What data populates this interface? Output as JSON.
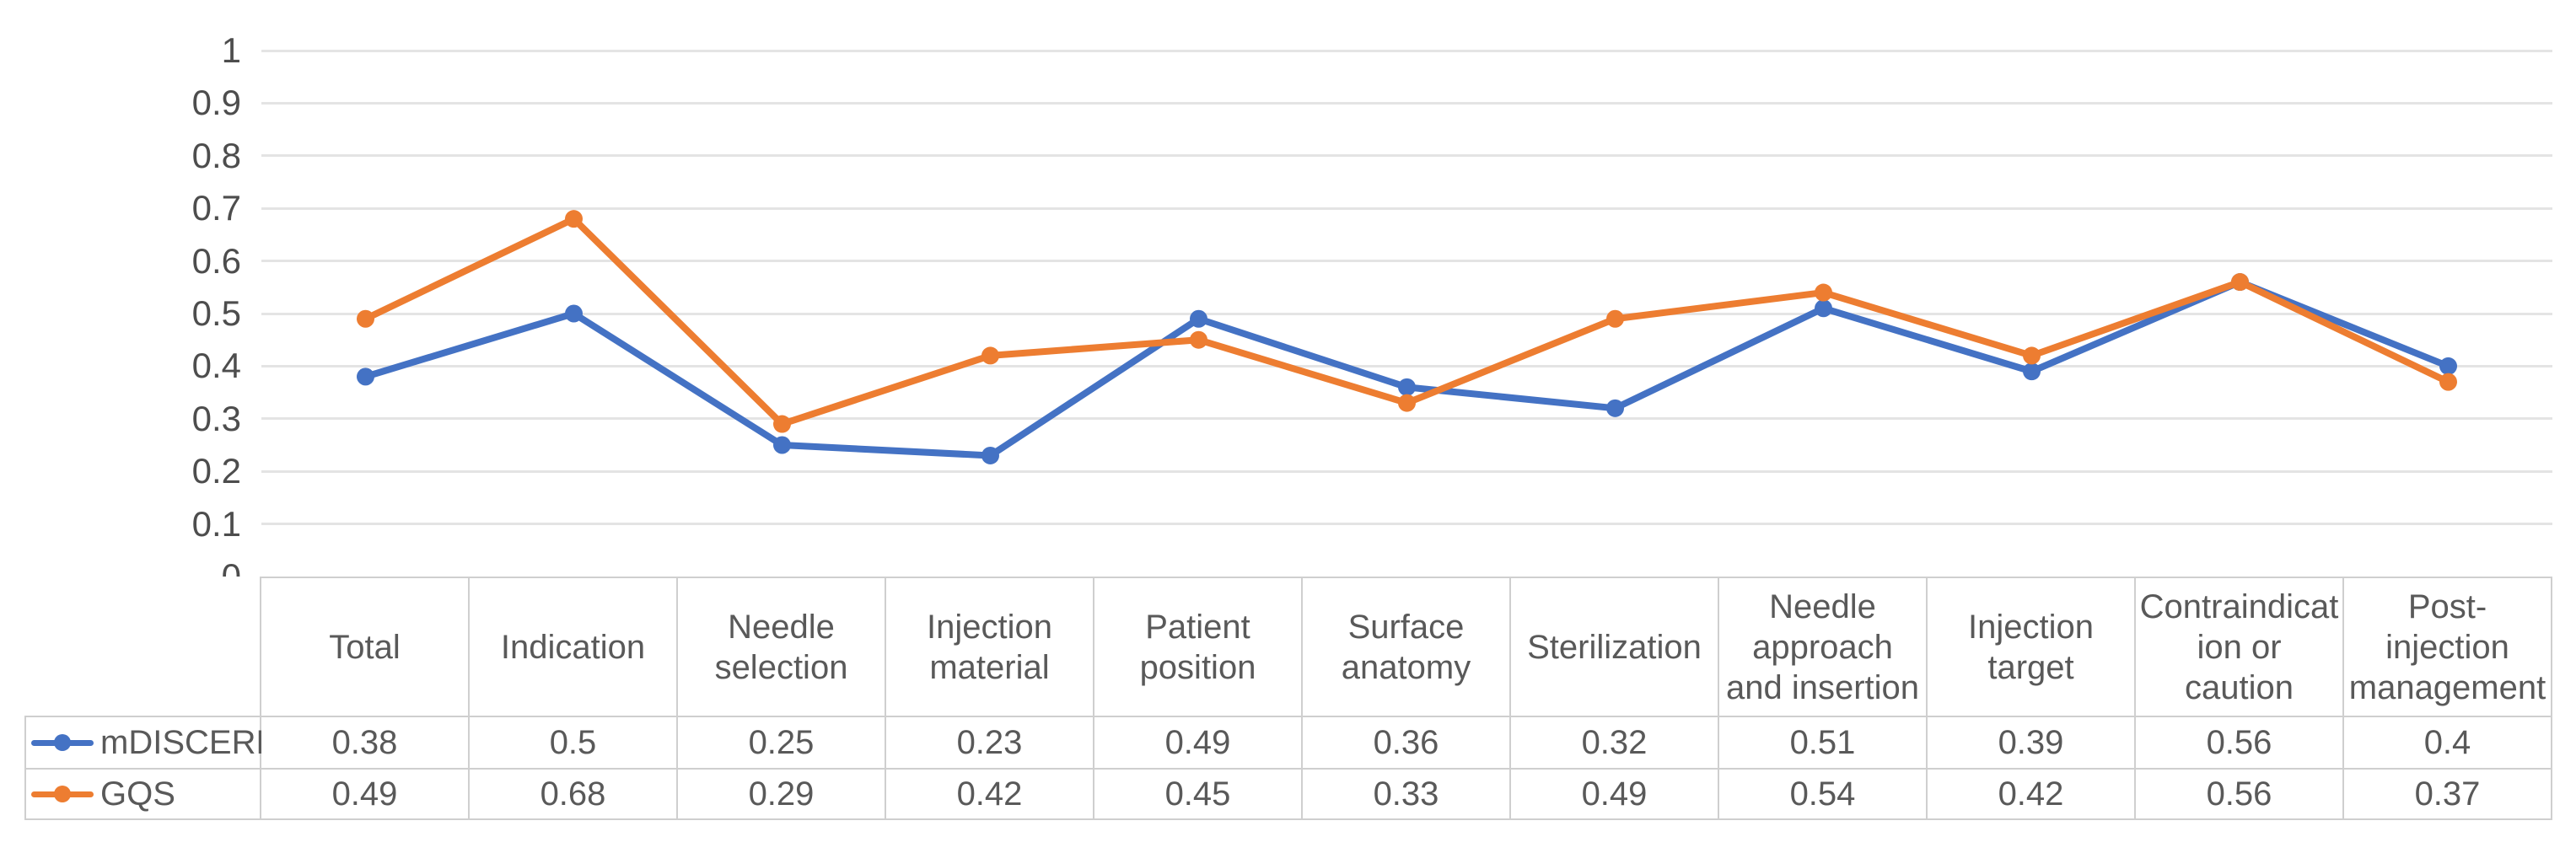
{
  "chart_data": {
    "type": "line",
    "title": "",
    "xlabel": "",
    "ylabel": "",
    "categories": [
      "Total",
      "Indication",
      "Needle selection",
      "Injection material",
      "Patient position",
      "Surface anatomy",
      "Sterilization",
      "Needle approach and insertion",
      "Injection target",
      "Contraindication or caution",
      "Post-injection management"
    ],
    "category_display": [
      "Total",
      "Indication",
      "Needle\nselection",
      "Injection\nmaterial",
      "Patient\nposition",
      "Surface\nanatomy",
      "Sterilization",
      "Needle\napproach\nand insertion",
      "Injection\ntarget",
      "Contraindicat\nion or\ncaution",
      "Post-\ninjection\nmanagement"
    ],
    "series": [
      {
        "name": "mDISCERN",
        "color": "#4472C4",
        "values": [
          0.38,
          0.5,
          0.25,
          0.23,
          0.49,
          0.36,
          0.32,
          0.51,
          0.39,
          0.56,
          0.4
        ]
      },
      {
        "name": "GQS",
        "color": "#ED7D31",
        "values": [
          0.49,
          0.68,
          0.29,
          0.42,
          0.45,
          0.33,
          0.49,
          0.54,
          0.42,
          0.56,
          0.37
        ]
      }
    ],
    "ylim": [
      0,
      1
    ],
    "ytick_step": 0.1,
    "yticks": [
      "1",
      "0.9",
      "0.8",
      "0.7",
      "0.6",
      "0.5",
      "0.4",
      "0.3",
      "0.2",
      "0.1",
      "0"
    ],
    "grid": true,
    "legend_position": "data-table-left"
  }
}
